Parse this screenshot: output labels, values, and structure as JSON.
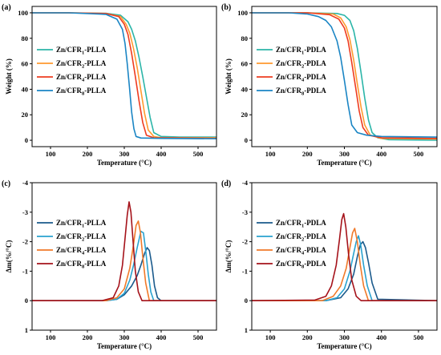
{
  "chart_data": [
    {
      "panel_label": "(a)",
      "type": "line",
      "xlabel": "Temperature (°C)",
      "ylabel": "Weight (%)",
      "xlim": [
        50,
        550
      ],
      "ylim": [
        -5,
        105
      ],
      "xticks": [
        "100",
        "200",
        "300",
        "400",
        "500"
      ],
      "yticks": [
        "0",
        "20",
        "40",
        "60",
        "80",
        "100"
      ],
      "legend_position": "left-middle",
      "series": [
        {
          "name": "Zn/CFR1-PLLA",
          "sub_base": "Zn/CFR",
          "sub": "1",
          "suffix": "-PLLA",
          "color": "#2bb5a8",
          "x": [
            50,
            150,
            250,
            290,
            310,
            320,
            330,
            340,
            350,
            360,
            370,
            380,
            400,
            450,
            550
          ],
          "y": [
            100,
            100,
            99.6,
            98,
            93,
            87,
            78,
            65,
            50,
            34,
            18,
            6,
            3,
            2.5,
            2.5
          ]
        },
        {
          "name": "Zn/CFR2-PLLA",
          "sub_base": "Zn/CFR",
          "sub": "2",
          "suffix": "-PLLA",
          "color": "#ff9a2e",
          "x": [
            50,
            150,
            250,
            290,
            305,
            315,
            325,
            335,
            345,
            355,
            365,
            380,
            400,
            550
          ],
          "y": [
            100,
            100,
            99.5,
            97,
            91,
            84,
            72,
            57,
            39,
            21,
            8,
            3,
            2,
            2
          ]
        },
        {
          "name": "Zn/CFR4-PLLA",
          "sub_base": "Zn/CFR",
          "sub": "4",
          "suffix": "-PLLA",
          "color": "#ee3b1f",
          "x": [
            50,
            150,
            250,
            285,
            300,
            310,
            320,
            330,
            340,
            350,
            360,
            380,
            550
          ],
          "y": [
            100,
            100,
            99.4,
            97,
            91,
            83,
            68,
            50,
            31,
            14,
            4,
            2,
            1.5
          ]
        },
        {
          "name": "Zn/CFR8-PLLA",
          "sub_base": "Zn/CFR",
          "sub": "8",
          "suffix": "-PLLA",
          "color": "#1a85c4",
          "x": [
            50,
            150,
            250,
            280,
            295,
            302,
            308,
            314,
            320,
            326,
            332,
            345,
            400,
            550
          ],
          "y": [
            100,
            100,
            98.8,
            95,
            87,
            76,
            60,
            42,
            22,
            9,
            3,
            1.8,
            1.5,
            1.2
          ]
        }
      ]
    },
    {
      "panel_label": "(b)",
      "type": "line",
      "xlabel": "Temperature (°C)",
      "ylabel": "Weight (%)",
      "xlim": [
        50,
        550
      ],
      "ylim": [
        -5,
        105
      ],
      "xticks": [
        "100",
        "200",
        "300",
        "400",
        "500"
      ],
      "yticks": [
        "0",
        "20",
        "40",
        "60",
        "80",
        "100"
      ],
      "legend_position": "left-middle",
      "series": [
        {
          "name": "Zn/CFR1-PDLA",
          "sub_base": "Zn/CFR",
          "sub": "1",
          "suffix": "-PDLA",
          "color": "#2bb5a8",
          "x": [
            50,
            200,
            280,
            300,
            315,
            325,
            335,
            345,
            355,
            365,
            375,
            390,
            420,
            550
          ],
          "y": [
            100,
            100,
            99.5,
            98,
            94,
            86,
            72,
            53,
            33,
            16,
            6,
            2,
            0.5,
            0
          ]
        },
        {
          "name": "Zn/CFR2-PDLA",
          "sub_base": "Zn/CFR",
          "sub": "2",
          "suffix": "-PDLA",
          "color": "#ff9a2e",
          "x": [
            50,
            200,
            270,
            290,
            305,
            315,
            325,
            335,
            345,
            355,
            370,
            400,
            550
          ],
          "y": [
            100,
            100,
            99,
            96,
            89,
            79,
            63,
            44,
            26,
            12,
            4,
            1.5,
            1
          ]
        },
        {
          "name": "Zn/CFR4-PDLA",
          "sub_base": "Zn/CFR",
          "sub": "4",
          "suffix": "-PDLA",
          "color": "#ee3b1f",
          "x": [
            50,
            200,
            260,
            285,
            300,
            310,
            320,
            330,
            340,
            350,
            365,
            400,
            550
          ],
          "y": [
            100,
            100,
            98.5,
            95,
            88,
            78,
            61,
            42,
            23,
            10,
            4,
            2,
            1.5
          ]
        },
        {
          "name": "Zn/CFR8-PDLA",
          "sub_base": "Zn/CFR",
          "sub": "8",
          "suffix": "-PDLA",
          "color": "#1a85c4",
          "x": [
            50,
            150,
            200,
            230,
            250,
            265,
            280,
            290,
            300,
            310,
            320,
            335,
            360,
            400,
            550
          ],
          "y": [
            100,
            100,
            99,
            97,
            94,
            89,
            78,
            65,
            47,
            28,
            12,
            6,
            4,
            3,
            2.5
          ]
        }
      ]
    },
    {
      "panel_label": "(c)",
      "type": "line",
      "xlabel": "Temperature (°C)",
      "ylabel": "Δm(%/°C)",
      "xlim": [
        50,
        550
      ],
      "ylim": [
        1,
        -4
      ],
      "xticks": [
        "100",
        "200",
        "300",
        "400",
        "500"
      ],
      "yticks": [
        "1",
        "0",
        "-1",
        "-2",
        "-3",
        "-4"
      ],
      "legend_position": "left-middle",
      "series": [
        {
          "name": "Zn/CFR1-PLLA",
          "sub_base": "Zn/CFR",
          "sub": "1",
          "suffix": "-PLLA",
          "color": "#1a5a8c",
          "x": [
            50,
            250,
            280,
            300,
            320,
            335,
            345,
            355,
            362,
            368,
            375,
            382,
            390,
            400,
            550
          ],
          "y": [
            0,
            0,
            -0.05,
            -0.2,
            -0.5,
            -0.85,
            -1.2,
            -1.6,
            -1.8,
            -1.7,
            -1.2,
            -0.5,
            -0.1,
            0,
            0
          ]
        },
        {
          "name": "Zn/CFR2-PLLA",
          "sub_base": "Zn/CFR",
          "sub": "2",
          "suffix": "-PLLA",
          "color": "#2aa2cf",
          "x": [
            50,
            250,
            280,
            300,
            315,
            325,
            335,
            345,
            352,
            358,
            365,
            372,
            380,
            550
          ],
          "y": [
            0,
            0,
            -0.05,
            -0.25,
            -0.7,
            -1.2,
            -1.8,
            -2.35,
            -2.3,
            -1.7,
            -0.9,
            -0.3,
            0,
            0
          ]
        },
        {
          "name": "Zn/CFR4-PLLA",
          "sub_base": "Zn/CFR",
          "sub": "4",
          "suffix": "-PLLA",
          "color": "#f07a2a",
          "x": [
            50,
            250,
            280,
            300,
            315,
            325,
            332,
            338,
            344,
            350,
            358,
            368,
            550
          ],
          "y": [
            0,
            0,
            -0.1,
            -0.4,
            -1.1,
            -1.9,
            -2.55,
            -2.7,
            -2.3,
            -1.5,
            -0.6,
            0,
            0
          ]
        },
        {
          "name": "Zn/CFR8-PLLA",
          "sub_base": "Zn/CFR",
          "sub": "8",
          "suffix": "-PLLA",
          "color": "#a5121a",
          "x": [
            50,
            240,
            270,
            285,
            295,
            302,
            308,
            313,
            318,
            324,
            330,
            338,
            348,
            550
          ],
          "y": [
            0,
            0,
            -0.1,
            -0.5,
            -1.2,
            -2.1,
            -2.9,
            -3.35,
            -3.0,
            -2.0,
            -1.0,
            -0.3,
            0,
            0
          ]
        }
      ]
    },
    {
      "panel_label": "(d)",
      "type": "line",
      "xlabel": "Temperature (°C)",
      "ylabel": "Δm(%/°C)",
      "xlim": [
        50,
        550
      ],
      "ylim": [
        1,
        -4
      ],
      "xticks": [
        "100",
        "200",
        "300",
        "400",
        "500"
      ],
      "yticks": [
        "1",
        "0",
        "-1",
        "-2",
        "-3",
        "-4"
      ],
      "legend_position": "left-middle",
      "series": [
        {
          "name": "Zn/CFR1-PDLA",
          "sub_base": "Zn/CFR",
          "sub": "1",
          "suffix": "-PDLA",
          "color": "#1a5a8c",
          "x": [
            50,
            250,
            290,
            310,
            325,
            335,
            343,
            350,
            357,
            365,
            375,
            390,
            550
          ],
          "y": [
            0,
            0,
            -0.1,
            -0.4,
            -0.9,
            -1.5,
            -1.9,
            -2.0,
            -1.8,
            -1.3,
            -0.6,
            -0.05,
            0
          ]
        },
        {
          "name": "Zn/CFR2-PDLA",
          "sub_base": "Zn/CFR",
          "sub": "2",
          "suffix": "-PDLA",
          "color": "#2aa2cf",
          "x": [
            50,
            250,
            280,
            300,
            315,
            325,
            332,
            338,
            344,
            352,
            362,
            375,
            550
          ],
          "y": [
            0,
            0,
            -0.1,
            -0.4,
            -1.0,
            -1.6,
            -2.0,
            -2.2,
            -1.9,
            -1.2,
            -0.5,
            0,
            0
          ]
        },
        {
          "name": "Zn/CFR4-PDLA",
          "sub_base": "Zn/CFR",
          "sub": "4",
          "suffix": "-PDLA",
          "color": "#f07a2a",
          "x": [
            50,
            240,
            270,
            290,
            305,
            315,
            322,
            328,
            335,
            343,
            352,
            365,
            550
          ],
          "y": [
            0,
            0,
            -0.15,
            -0.5,
            -1.1,
            -1.8,
            -2.3,
            -2.45,
            -2.0,
            -1.2,
            -0.5,
            0,
            0
          ]
        },
        {
          "name": "Zn/CFR8-PDLA",
          "sub_base": "Zn/CFR",
          "sub": "8",
          "suffix": "-PDLA",
          "color": "#a5121a",
          "x": [
            50,
            220,
            250,
            265,
            278,
            287,
            293,
            298,
            304,
            311,
            320,
            332,
            345,
            550
          ],
          "y": [
            0,
            -0.02,
            -0.15,
            -0.5,
            -1.2,
            -2.1,
            -2.75,
            -2.95,
            -2.5,
            -1.6,
            -0.7,
            -0.15,
            0,
            0
          ]
        }
      ]
    }
  ]
}
